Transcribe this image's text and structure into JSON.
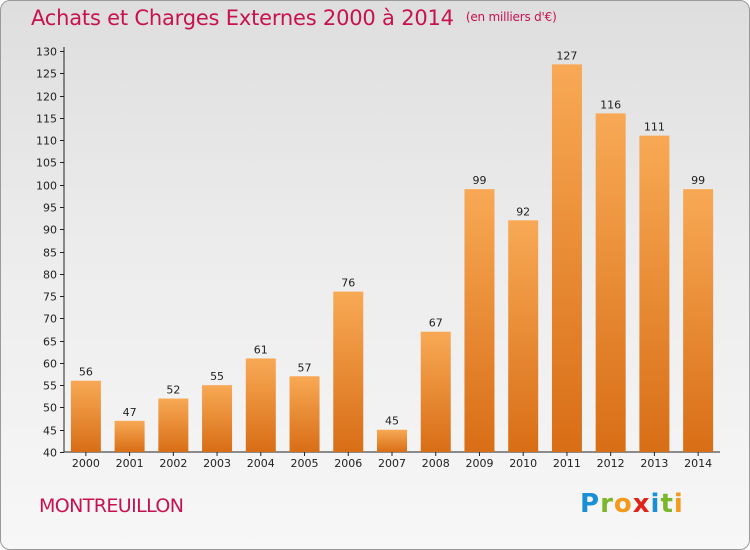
{
  "chart_data": {
    "type": "bar",
    "title": "Achats et Charges Externes 2000 à 2014",
    "unit_label": "(en milliers d'€)",
    "categories": [
      "2000",
      "2001",
      "2002",
      "2003",
      "2004",
      "2005",
      "2006",
      "2007",
      "2008",
      "2009",
      "2010",
      "2011",
      "2012",
      "2013",
      "2014"
    ],
    "values": [
      56,
      47,
      52,
      55,
      61,
      57,
      76,
      45,
      67,
      99,
      92,
      127,
      116,
      111,
      99
    ],
    "xlabel": "",
    "ylabel": "",
    "ylim": [
      40,
      130
    ],
    "yticks": [
      40,
      45,
      50,
      55,
      60,
      65,
      70,
      75,
      80,
      85,
      90,
      95,
      100,
      105,
      110,
      115,
      120,
      125,
      130
    ],
    "grid": false,
    "legend": "none",
    "bar_color_light": "#f8a955",
    "bar_color_dark": "#d86e16",
    "title_color": "#c8124f"
  },
  "footer": {
    "commune": "MONTREUILLON",
    "logo_letters": [
      "P",
      "r",
      "o",
      "x",
      "i",
      "t",
      "i"
    ]
  }
}
